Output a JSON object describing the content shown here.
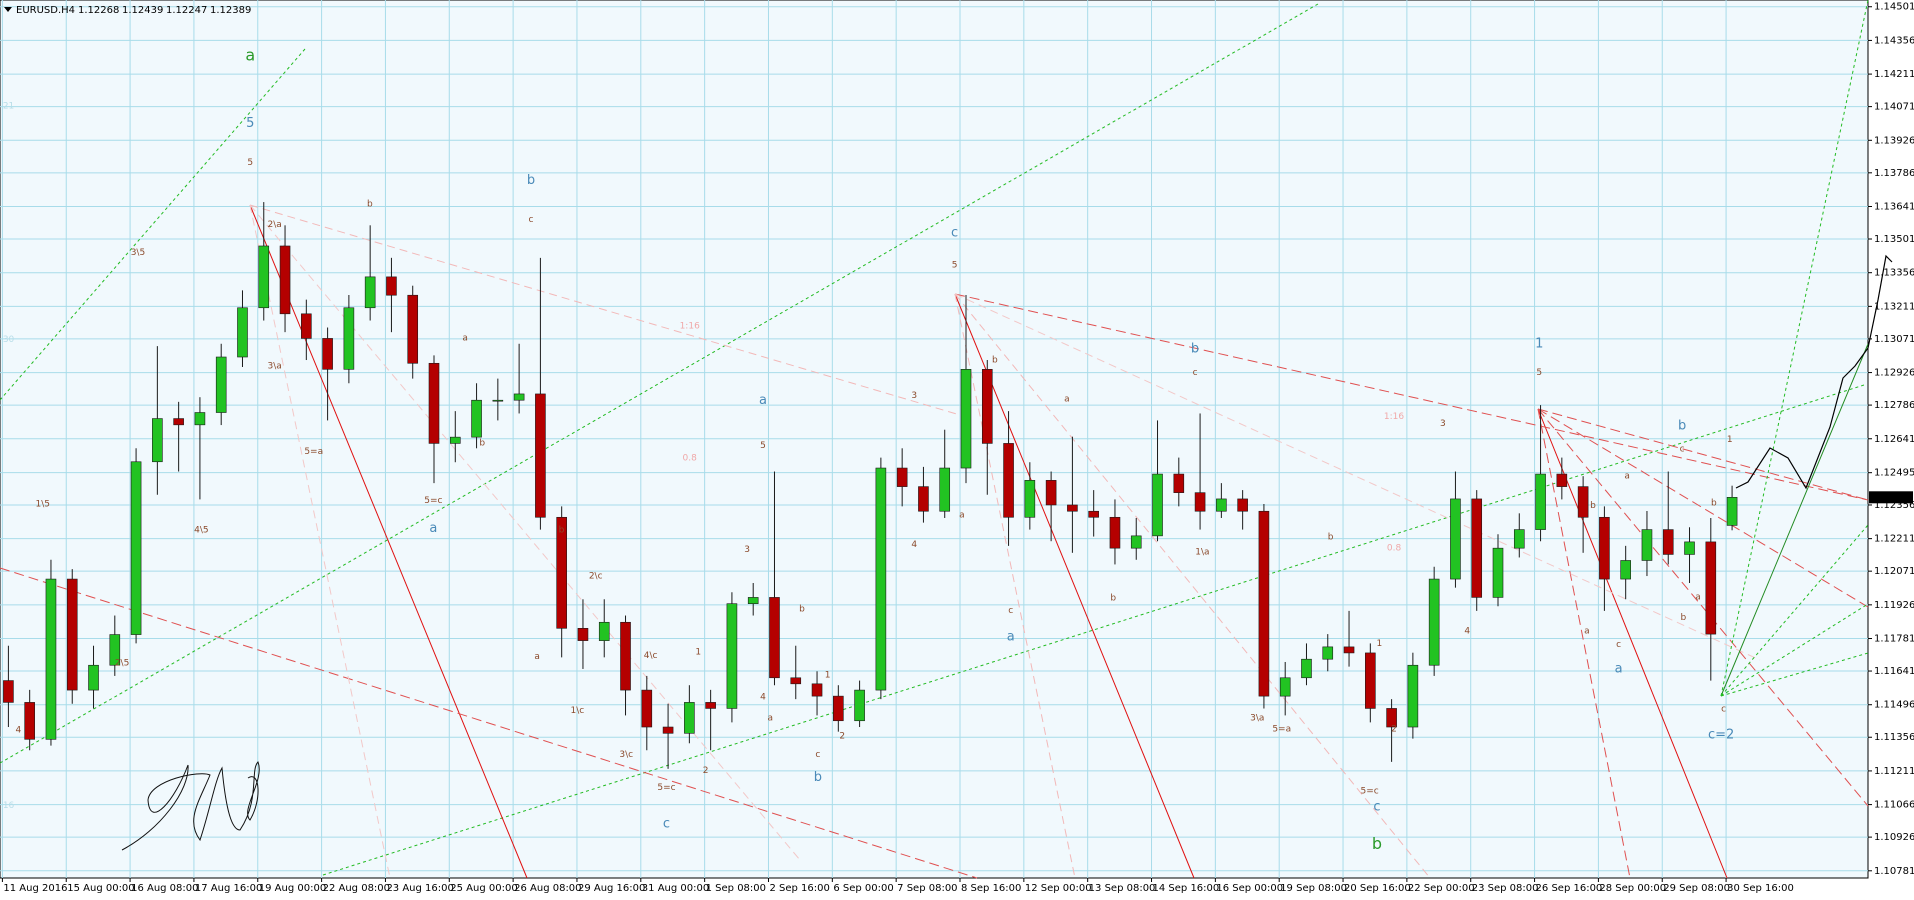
{
  "chart_data": {
    "type": "candlestick",
    "symbol": "EURUSD.H4",
    "categories": [
      "11 Aug 2016",
      null,
      null,
      "15 Aug 00:00",
      null,
      null,
      "16 Aug 08:00",
      null,
      null,
      "17 Aug 16:00",
      null,
      null,
      "19 Aug 00:00",
      null,
      null,
      "22 Aug 08:00",
      null,
      null,
      "23 Aug 16:00",
      null,
      null,
      "25 Aug 00:00",
      null,
      null,
      "26 Aug 08:00",
      null,
      null,
      "29 Aug 16:00",
      null,
      null,
      "31 Aug 00:00",
      null,
      null,
      "1 Sep 08:00",
      null,
      null,
      "2 Sep 16:00",
      null,
      null,
      "6 Sep 00:00",
      null,
      null,
      "7 Sep 08:00",
      null,
      null,
      "8 Sep 16:00",
      null,
      null,
      "12 Sep 00:00",
      null,
      null,
      "13 Sep 08:00",
      null,
      null,
      "14 Sep 16:00",
      null,
      null,
      "16 Sep 00:00",
      null,
      null,
      "19 Sep 08:00",
      null,
      null,
      "20 Sep 16:00",
      null,
      null,
      "22 Sep 00:00",
      null,
      null,
      "23 Sep 08:00",
      null,
      null,
      "26 Sep 16:00",
      null,
      null,
      "28 Sep 00:00",
      null,
      null,
      "29 Sep 08:00",
      null,
      null,
      "30 Sep 16:00"
    ],
    "open": [
      1.116,
      1.11506,
      1.11347,
      1.12037,
      1.11559,
      1.11666,
      1.11798,
      1.12542,
      1.12728,
      1.12701,
      1.12754,
      1.12993,
      1.13205,
      1.13471,
      1.13179,
      1.13073,
      1.1294,
      1.13205,
      1.13338,
      1.13259,
      1.12966,
      1.12621,
      1.12648,
      1.12807,
      1.12807,
      1.12834,
      1.12303,
      1.11825,
      1.11772,
      1.11851,
      1.11559,
      1.114,
      1.11373,
      1.11506,
      1.1148,
      1.11931,
      1.11958,
      1.11612,
      1.11586,
      1.11533,
      1.11427,
      1.11559,
      1.12515,
      1.12435,
      1.12329,
      1.12515,
      1.1294,
      1.12621,
      1.12303,
      1.12462,
      1.12356,
      1.12329,
      1.12303,
      1.1217,
      1.12223,
      1.12489,
      1.12409,
      1.12329,
      1.12382,
      1.12329,
      1.11533,
      1.11612,
      1.11692,
      1.11745,
      1.11719,
      1.1148,
      1.114,
      1.11666,
      1.12037,
      1.12382,
      1.11958,
      1.1217,
      1.1225,
      1.12489,
      1.12435,
      1.12303,
      1.12037,
      1.12117,
      1.1225,
      1.12143,
      1.12197,
      1.12268
    ],
    "high": [
      1.1175,
      1.1156,
      1.1212,
      1.1208,
      1.1175,
      1.1188,
      1.126,
      1.1304,
      1.128,
      1.1282,
      1.1305,
      1.1328,
      1.1366,
      1.1356,
      1.1324,
      1.1312,
      1.1326,
      1.1356,
      1.1342,
      1.133,
      1.13,
      1.1276,
      1.1288,
      1.129,
      1.1305,
      1.1342,
      1.1235,
      1.1195,
      1.1195,
      1.1188,
      1.1162,
      1.115,
      1.1158,
      1.1156,
      1.1198,
      1.1202,
      1.125,
      1.1175,
      1.1164,
      1.1158,
      1.116,
      1.1256,
      1.126,
      1.1252,
      1.1268,
      1.1326,
      1.1298,
      1.1276,
      1.1254,
      1.125,
      1.1265,
      1.1242,
      1.1238,
      1.123,
      1.1272,
      1.1256,
      1.1275,
      1.1245,
      1.1242,
      1.1236,
      1.1168,
      1.1176,
      1.118,
      1.119,
      1.1176,
      1.1152,
      1.1172,
      1.1209,
      1.125,
      1.1242,
      1.1223,
      1.1232,
      1.12786,
      1.1256,
      1.1248,
      1.1235,
      1.1218,
      1.1233,
      1.125,
      1.1226,
      1.123,
      1.12439
    ],
    "low": [
      1.114,
      1.113,
      1.1132,
      1.115,
      1.1148,
      1.1162,
      1.1176,
      1.124,
      1.125,
      1.1238,
      1.127,
      1.1295,
      1.1315,
      1.131,
      1.1298,
      1.1272,
      1.1288,
      1.1315,
      1.131,
      1.129,
      1.1245,
      1.1254,
      1.126,
      1.1272,
      1.1275,
      1.1225,
      1.117,
      1.1165,
      1.117,
      1.1145,
      1.113,
      1.1122,
      1.1133,
      1.113,
      1.1142,
      1.1188,
      1.1158,
      1.1152,
      1.1145,
      1.1138,
      1.114,
      1.1152,
      1.1235,
      1.1228,
      1.123,
      1.1245,
      1.124,
      1.1218,
      1.1225,
      1.122,
      1.1215,
      1.1222,
      1.121,
      1.1212,
      1.122,
      1.1235,
      1.1225,
      1.123,
      1.1225,
      1.1148,
      1.1145,
      1.1158,
      1.1164,
      1.1166,
      1.1142,
      1.1125,
      1.1135,
      1.1162,
      1.12,
      1.119,
      1.1192,
      1.1213,
      1.122,
      1.1238,
      1.1215,
      1.119,
      1.1195,
      1.1205,
      1.121,
      1.1202,
      1.116,
      1.12247
    ],
    "close": [
      1.11506,
      1.11347,
      1.12037,
      1.11559,
      1.11666,
      1.11798,
      1.12542,
      1.12728,
      1.12701,
      1.12754,
      1.12993,
      1.13205,
      1.13471,
      1.13179,
      1.13073,
      1.1294,
      1.13205,
      1.13338,
      1.13259,
      1.12966,
      1.12621,
      1.12648,
      1.12807,
      1.12807,
      1.12834,
      1.12303,
      1.11825,
      1.11772,
      1.11851,
      1.11559,
      1.114,
      1.11373,
      1.11506,
      1.1148,
      1.11931,
      1.11958,
      1.11612,
      1.11586,
      1.11533,
      1.11427,
      1.11559,
      1.12515,
      1.12435,
      1.12329,
      1.12515,
      1.1294,
      1.12621,
      1.12303,
      1.12462,
      1.12356,
      1.12329,
      1.12303,
      1.1217,
      1.12223,
      1.12489,
      1.12409,
      1.12329,
      1.12382,
      1.12329,
      1.11533,
      1.11612,
      1.11692,
      1.11745,
      1.11719,
      1.1148,
      1.114,
      1.11666,
      1.12037,
      1.12382,
      1.11958,
      1.1217,
      1.1225,
      1.12489,
      1.12435,
      1.12303,
      1.12037,
      1.12117,
      1.1225,
      1.12143,
      1.12197,
      1.118,
      1.12389
    ],
    "up_color": "#22c322",
    "down_color": "#b40000",
    "ylim": [
      1.1075,
      1.1453
    ],
    "yticks": [
      1.14501,
      1.14356,
      1.14211,
      1.14071,
      1.13926,
      1.13786,
      1.13641,
      1.13501,
      1.13356,
      1.13211,
      1.13071,
      1.12926,
      1.12786,
      1.12641,
      1.12495,
      1.12356,
      1.12211,
      1.12071,
      1.11926,
      1.11781,
      1.11641,
      1.11496,
      1.11356,
      1.11211,
      1.11066,
      1.10926,
      1.10781
    ],
    "grid": true,
    "annotations": [
      "a",
      "5",
      "5",
      "2\\a",
      "3\\5",
      "3\\a",
      "5=a",
      "b",
      "a",
      "b",
      "5=c",
      "a",
      "b",
      "c",
      "1\\5",
      "4\\5",
      "2\\5",
      "4",
      "b",
      "a",
      "2\\c",
      "1\\c",
      "3\\c",
      "4\\c",
      "5=c",
      "c",
      "1",
      "2",
      "3",
      "4",
      "5",
      "a",
      "a",
      "b",
      "c",
      "b",
      "1",
      "2",
      "c",
      "5",
      "3",
      "4",
      "b",
      "a",
      "c",
      "a",
      "a",
      "b",
      "b",
      "c",
      "1\\a",
      "3\\a",
      "5=a",
      "b",
      "1",
      "2",
      "5=c",
      "c",
      "b",
      "3",
      "4",
      "1",
      "5",
      "b",
      "a",
      "c",
      "a",
      "a",
      "b",
      "c",
      "1",
      "b",
      "b",
      "a",
      "c",
      "c=2",
      "1:16",
      "1:16",
      "0.8",
      "0.8",
      "21",
      "30",
      "16"
    ]
  }
}
